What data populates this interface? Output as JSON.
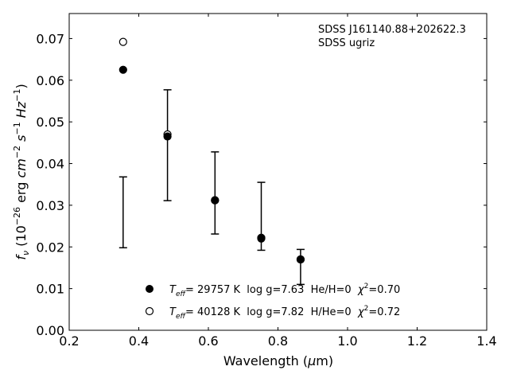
{
  "chart_data": {
    "type": "scatter",
    "annotation": {
      "line1": "SDSS J161140.88+202622.3",
      "line2": "SDSS ugriz"
    },
    "xlabel": {
      "prefix": "Wavelength (",
      "mu": "μ",
      "suffix": "m)"
    },
    "ylabel": {
      "f": "f",
      "nu": "ν",
      "open": " (10",
      "exp1": "−26",
      "mid": " erg ",
      "cm": "cm",
      "exp2": "−2",
      "s": " s",
      "exp3": "−1",
      "hz": " Hz",
      "exp4": "−1",
      "close": ")"
    },
    "xlim": [
      0.2,
      1.4
    ],
    "ylim": [
      0.0,
      0.076
    ],
    "xticks": [
      "0.2",
      "0.4",
      "0.6",
      "0.8",
      "1.0",
      "1.2",
      "1.4"
    ],
    "yticks": [
      "0.00",
      "0.01",
      "0.02",
      "0.03",
      "0.04",
      "0.05",
      "0.06",
      "0.07"
    ],
    "observed": {
      "x": [
        0.355,
        0.4825,
        0.619,
        0.752,
        0.865
      ],
      "y": [
        0.0283,
        0.0445,
        0.0329,
        0.0274,
        0.0152
      ],
      "yerr_low": [
        0.0198,
        0.0311,
        0.0231,
        0.0192,
        0.011
      ],
      "yerr_high": [
        0.0368,
        0.0577,
        0.0428,
        0.0355,
        0.0194
      ]
    },
    "series": [
      {
        "name": "T_eff= 29757 K  log g=7.63  He/H=0  χ²=0.70",
        "marker": "filled-circle",
        "color": "#000000",
        "x": [
          0.355,
          0.4825,
          0.619,
          0.752,
          0.865
        ],
        "y": [
          0.0625,
          0.0465,
          0.0312,
          0.022,
          0.017
        ]
      },
      {
        "name": "T_eff= 40128 K  log g=7.82  H/He=0  χ²=0.72",
        "marker": "open-circle",
        "color": "#000000",
        "x": [
          0.355,
          0.4825,
          0.619,
          0.752,
          0.865
        ],
        "y": [
          0.0692,
          0.047,
          0.0312,
          0.0222,
          0.017
        ]
      }
    ],
    "legend": {
      "placement": "lower-center",
      "entries": [
        {
          "T": "T",
          "eff": "eff",
          "rest": "= 29757 K  log g=7.63  He/H=0  ",
          "chi": "χ",
          "chi_exp": "2",
          "val": "=0.70"
        },
        {
          "T": "T",
          "eff": "eff",
          "rest": "= 40128 K  log g=7.82  H/He=0  ",
          "chi": "χ",
          "chi_exp": "2",
          "val": "=0.72"
        }
      ]
    },
    "grid": false
  }
}
